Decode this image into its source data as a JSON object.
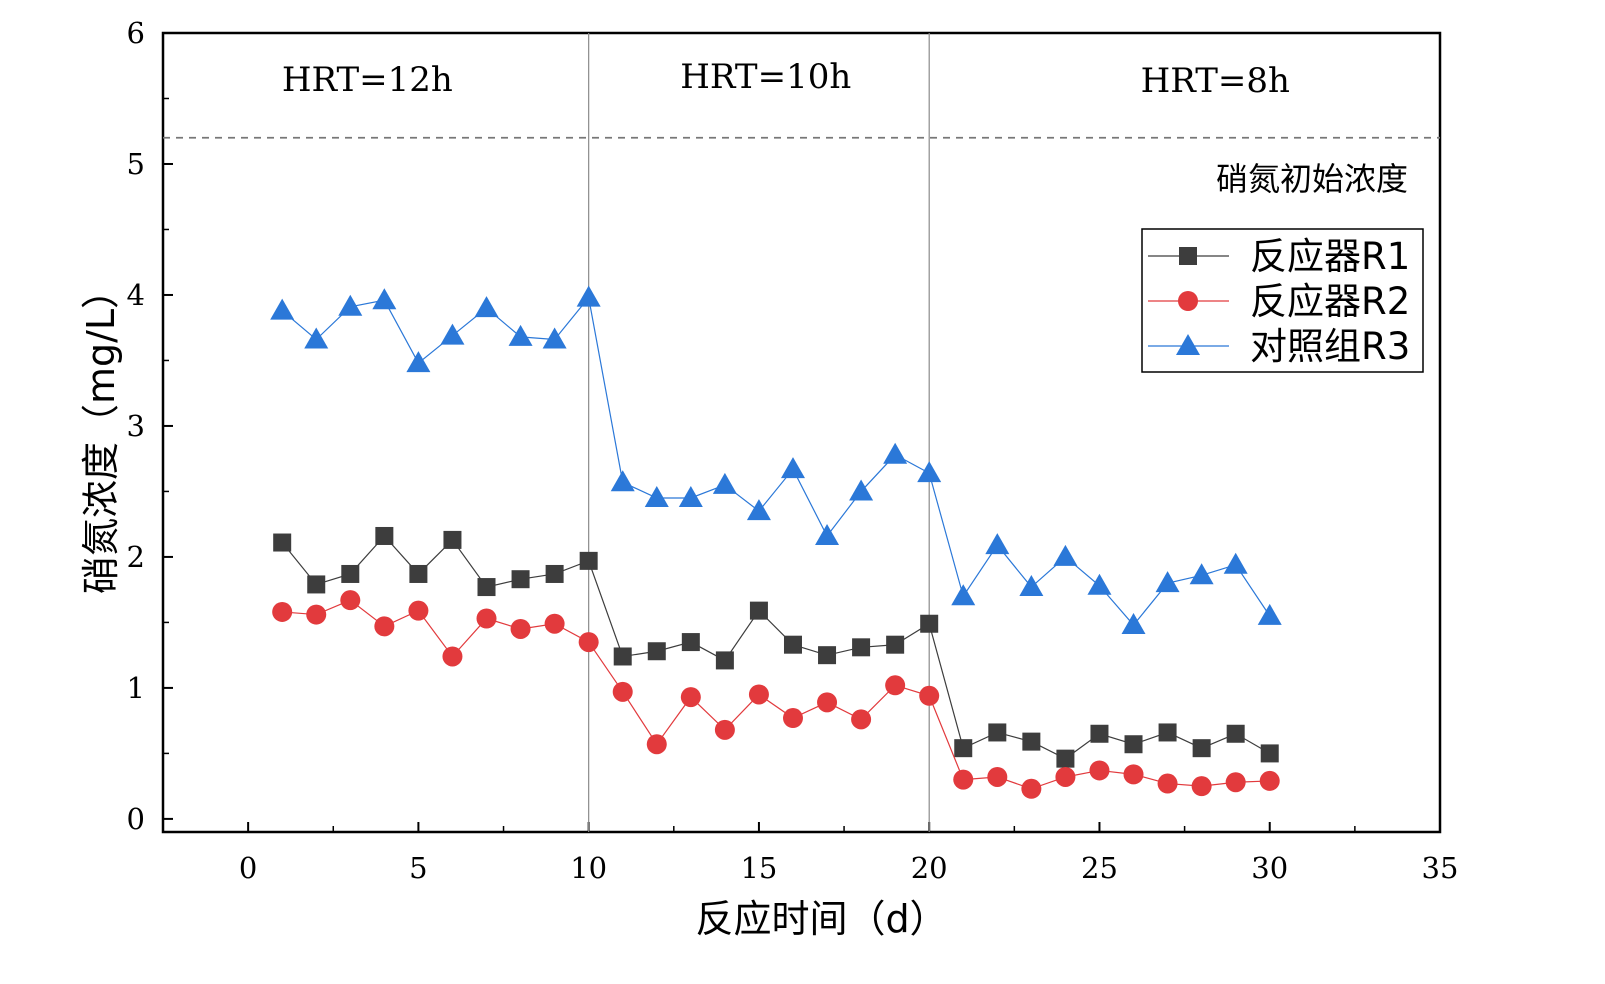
{
  "chart_data": {
    "type": "line",
    "title": "",
    "xlabel": "反应时间（d）",
    "ylabel": "硝氮浓度（mg/L）",
    "xlim": [
      -2.5,
      35
    ],
    "ylim": [
      -0.1,
      6
    ],
    "xticks": [
      0,
      5,
      10,
      15,
      20,
      25,
      30,
      35
    ],
    "xtick_labels": [
      "0",
      "5",
      "10",
      "15",
      "20",
      "25",
      "30",
      "35"
    ],
    "yticks": [
      0,
      1,
      2,
      3,
      4,
      5,
      6
    ],
    "ytick_labels": [
      "0",
      "1",
      "2",
      "3",
      "4",
      "5",
      "6"
    ],
    "grid": false,
    "legend_position": "upper-right",
    "vertical_lines": [
      10,
      20
    ],
    "regions": [
      {
        "label": "HRT=12h",
        "x_center": 3.5,
        "y": 5.65
      },
      {
        "label": "HRT=10h",
        "x_center": 15.2,
        "y": 5.67
      },
      {
        "label": "HRT=8h",
        "x_center": 28.4,
        "y": 5.64
      }
    ],
    "reference_line": {
      "y": 5.2,
      "label": "硝氮初始浓度",
      "style": "dashed",
      "color": "#777777"
    },
    "x": [
      1,
      2,
      3,
      4,
      5,
      6,
      7,
      8,
      9,
      10,
      11,
      12,
      13,
      14,
      15,
      16,
      17,
      18,
      19,
      20,
      21,
      22,
      23,
      24,
      25,
      26,
      27,
      28,
      29,
      30
    ],
    "series": [
      {
        "name": "反应器R1",
        "color": "#3d3d3d",
        "marker": "square",
        "values": [
          2.11,
          1.79,
          1.87,
          2.16,
          1.87,
          2.13,
          1.77,
          1.83,
          1.87,
          1.97,
          1.24,
          1.28,
          1.35,
          1.21,
          1.59,
          1.33,
          1.25,
          1.31,
          1.33,
          1.49,
          0.54,
          0.66,
          0.59,
          0.46,
          0.65,
          0.57,
          0.66,
          0.54,
          0.65,
          0.5
        ]
      },
      {
        "name": "反应器R2",
        "color": "#e23a3d",
        "marker": "circle",
        "values": [
          1.58,
          1.56,
          1.67,
          1.47,
          1.59,
          1.24,
          1.53,
          1.45,
          1.49,
          1.35,
          0.97,
          0.57,
          0.93,
          0.68,
          0.95,
          0.77,
          0.89,
          0.76,
          1.02,
          0.94,
          0.3,
          0.32,
          0.23,
          0.32,
          0.37,
          0.34,
          0.27,
          0.25,
          0.28,
          0.29
        ]
      },
      {
        "name": "对照组R3",
        "color": "#2b78d8",
        "marker": "triangle",
        "values": [
          3.88,
          3.66,
          3.91,
          3.96,
          3.48,
          3.69,
          3.9,
          3.68,
          3.66,
          3.98,
          2.57,
          2.45,
          2.45,
          2.55,
          2.35,
          2.67,
          2.16,
          2.5,
          2.78,
          2.64,
          1.7,
          2.09,
          1.77,
          2.0,
          1.78,
          1.48,
          1.8,
          1.86,
          1.94,
          1.55
        ]
      }
    ]
  }
}
